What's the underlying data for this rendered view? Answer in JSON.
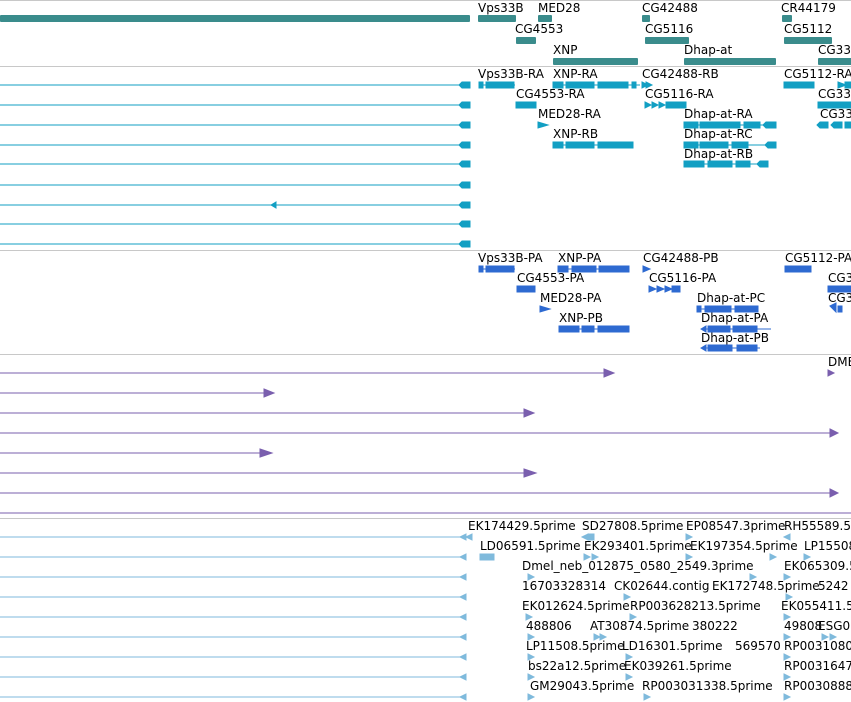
{
  "colors": {
    "gene": "#3a8c8c",
    "transcript": "#129fc3",
    "cds": "#2e6ad1",
    "alignment": "#7a5fae",
    "est": "#7fbadc",
    "separator": "#c8c8c8",
    "background": "#ffffff"
  },
  "tracks": {
    "genes": {
      "features": [
        {
          "label": "Vps33B"
        },
        {
          "label": "MED28"
        },
        {
          "label": "CG42488"
        },
        {
          "label": "CR44179"
        },
        {
          "label": "CG4553"
        },
        {
          "label": "CG5116"
        },
        {
          "label": "CG5112"
        },
        {
          "label": "XNP"
        },
        {
          "label": "Dhap-at"
        },
        {
          "label": "CG33"
        }
      ]
    },
    "transcripts": {
      "features": [
        {
          "label": "Vps33B-RA"
        },
        {
          "label": "XNP-RA"
        },
        {
          "label": "CG42488-RB"
        },
        {
          "label": "CG5112-RA"
        },
        {
          "label": "CG4553-RA"
        },
        {
          "label": "CG5116-RA"
        },
        {
          "label": "CG33"
        },
        {
          "label": "MED28-RA"
        },
        {
          "label": "Dhap-at-RA"
        },
        {
          "label": "CG33"
        },
        {
          "label": "XNP-RB"
        },
        {
          "label": "Dhap-at-RC"
        },
        {
          "label": "Dhap-at-RB"
        }
      ]
    },
    "cds": {
      "features": [
        {
          "label": "Vps33B-PA"
        },
        {
          "label": "XNP-PA"
        },
        {
          "label": "CG42488-PB"
        },
        {
          "label": "CG5112-PA"
        },
        {
          "label": "CG4553-PA"
        },
        {
          "label": "CG5116-PA"
        },
        {
          "label": "CG3"
        },
        {
          "label": "MED28-PA"
        },
        {
          "label": "Dhap-at-PC"
        },
        {
          "label": "CG3"
        },
        {
          "label": "XNP-PB"
        },
        {
          "label": "Dhap-at-PA"
        },
        {
          "label": "Dhap-at-PB"
        }
      ]
    },
    "alignments": {
      "features": [
        {
          "label": "DMEL"
        }
      ]
    },
    "ests": {
      "features": [
        {
          "label": "EK174429.5prime"
        },
        {
          "label": "SD27808.5prime"
        },
        {
          "label": "EP08547.3prime"
        },
        {
          "label": "RH55589.5"
        },
        {
          "label": "LD06591.5prime"
        },
        {
          "label": "EK293401.5prime"
        },
        {
          "label": "EK197354.5prime"
        },
        {
          "label": "LP15508"
        },
        {
          "label": "Dmel_neb_012875_0580_2549.3prime"
        },
        {
          "label": "EK065309.5"
        },
        {
          "label": "16703328314"
        },
        {
          "label": "CK02644.contig"
        },
        {
          "label": "EK172748.5prime"
        },
        {
          "label": "5242"
        },
        {
          "label": "EK012624.5prime"
        },
        {
          "label": "RP003628213.5prime"
        },
        {
          "label": "EK055411.5"
        },
        {
          "label": "488806"
        },
        {
          "label": "AT30874.5prime"
        },
        {
          "label": "380222"
        },
        {
          "label": "49808"
        },
        {
          "label": "ESG0"
        },
        {
          "label": "LP11508.5prime"
        },
        {
          "label": "LD16301.5prime"
        },
        {
          "label": "569570"
        },
        {
          "label": "RP0031080"
        },
        {
          "label": "bs22a12.5prime"
        },
        {
          "label": "EK039261.5prime"
        },
        {
          "label": "RP0031647"
        },
        {
          "label": "GM29043.5prime"
        },
        {
          "label": "RP003031338.5prime"
        },
        {
          "label": "RP0030888"
        }
      ]
    }
  }
}
